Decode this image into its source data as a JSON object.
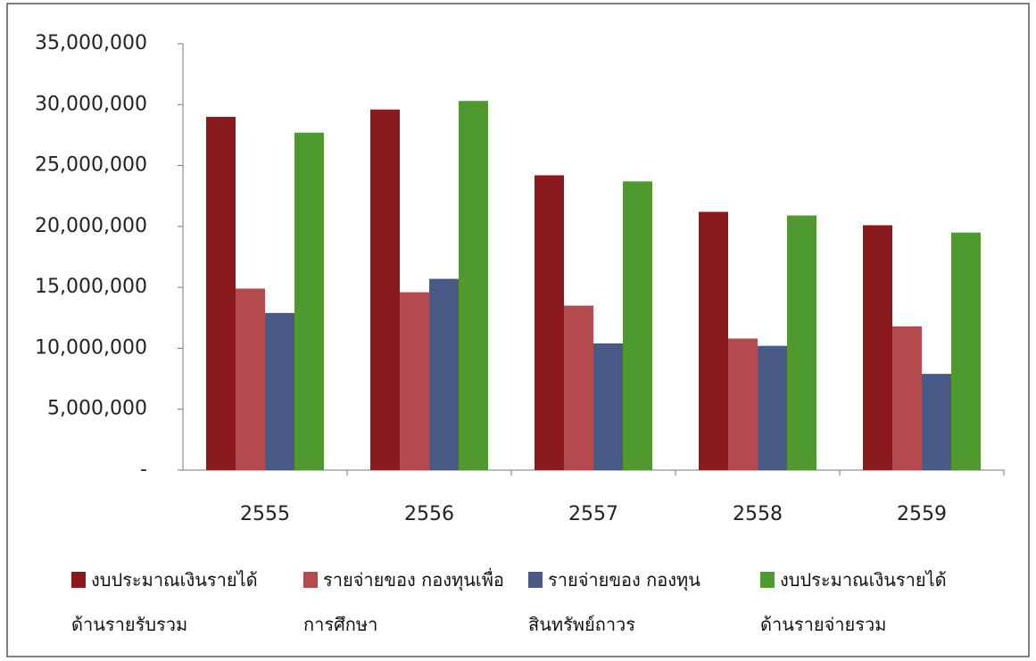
{
  "chart_data": {
    "type": "bar",
    "categories": [
      "2555",
      "2556",
      "2557",
      "2558",
      "2559"
    ],
    "series": [
      {
        "name": "งบประมาณเงินรายได้ ด้านรายรับรวม",
        "color": "#8b1a1f",
        "values": [
          29000000,
          29600000,
          24200000,
          21200000,
          20100000
        ]
      },
      {
        "name": "รายจ่ายของ กองทุนเพื่อการศึกษา",
        "color": "#b34a4d",
        "values": [
          14900000,
          14600000,
          13500000,
          10800000,
          11800000
        ]
      },
      {
        "name": "รายจ่ายของ กองทุนสินทรัพย์ถาวร",
        "color": "#4a5a86",
        "values": [
          12900000,
          15700000,
          10400000,
          10200000,
          7900000
        ]
      },
      {
        "name": "งบประมาณเงินรายได้ ด้านรายจ่ายรวม",
        "color": "#4f9a2e",
        "values": [
          27700000,
          30300000,
          23700000,
          20900000,
          19500000
        ]
      }
    ],
    "ylim": [
      0,
      35000000
    ],
    "yticks": [
      {
        "value": 0,
        "label": "-"
      },
      {
        "value": 5000000,
        "label": "5,000,000"
      },
      {
        "value": 10000000,
        "label": "10,000,000"
      },
      {
        "value": 15000000,
        "label": "15,000,000"
      },
      {
        "value": 20000000,
        "label": "20,000,000"
      },
      {
        "value": 25000000,
        "label": "25,000,000"
      },
      {
        "value": 30000000,
        "label": "30,000,000"
      },
      {
        "value": 35000000,
        "label": "35,000,000"
      }
    ],
    "legend": "bottom"
  }
}
